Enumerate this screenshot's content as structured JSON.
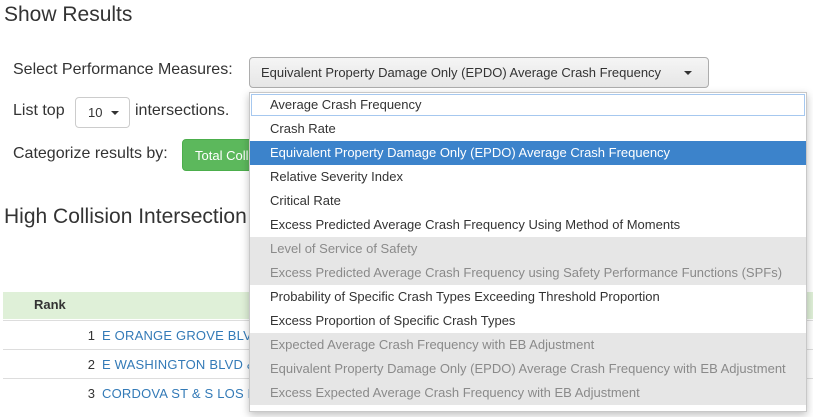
{
  "header": {
    "title": "Show Results"
  },
  "performance": {
    "label": "Select Performance Measures:",
    "selected": "Equivalent Property Damage Only (EPDO) Average Crash Frequency"
  },
  "list_top": {
    "label_before": "List top",
    "value": "10",
    "label_after": "intersections."
  },
  "categorize": {
    "label": "Categorize results by:",
    "button_label": "Total Coll"
  },
  "section": {
    "title": "High Collision Intersection"
  },
  "table": {
    "header_rank": "Rank",
    "rows": [
      {
        "rank": "1",
        "name": "E ORANGE GROVE BLV"
      },
      {
        "rank": "2",
        "name": "E WASHINGTON BLVD &"
      },
      {
        "rank": "3",
        "name": "CORDOVA ST & S LOS F"
      }
    ]
  },
  "dropdown": {
    "options": [
      {
        "label": "Average Crash Frequency",
        "state": "focused"
      },
      {
        "label": "Crash Rate",
        "state": "normal"
      },
      {
        "label": "Equivalent Property Damage Only (EPDO) Average Crash Frequency",
        "state": "selected"
      },
      {
        "label": "Relative Severity Index",
        "state": "normal"
      },
      {
        "label": "Critical Rate",
        "state": "normal"
      },
      {
        "label": "Excess Predicted Average Crash Frequency Using Method of Moments",
        "state": "normal"
      },
      {
        "label": "Level of Service of Safety",
        "state": "disabled"
      },
      {
        "label": "Excess Predicted Average Crash Frequency using Safety Performance Functions (SPFs)",
        "state": "disabled"
      },
      {
        "label": "Probability of Specific Crash Types Exceeding Threshold Proportion",
        "state": "normal"
      },
      {
        "label": "Excess Proportion of Specific Crash Types",
        "state": "normal"
      },
      {
        "label": "Expected Average Crash Frequency with EB Adjustment",
        "state": "disabled"
      },
      {
        "label": "Equivalent Property Damage Only (EPDO) Average Crash Frequency with EB Adjustment",
        "state": "disabled"
      },
      {
        "label": "Excess Expected Average Crash Frequency with EB Adjustment",
        "state": "disabled"
      }
    ]
  },
  "colors": {
    "selected_bg": "#3c83cb",
    "disabled_bg": "#e6e6e6",
    "header_green": "#dff0d8",
    "button_green": "#5cb85c",
    "link": "#337ab7"
  },
  "icons": {
    "caret": "caret-down-icon"
  }
}
